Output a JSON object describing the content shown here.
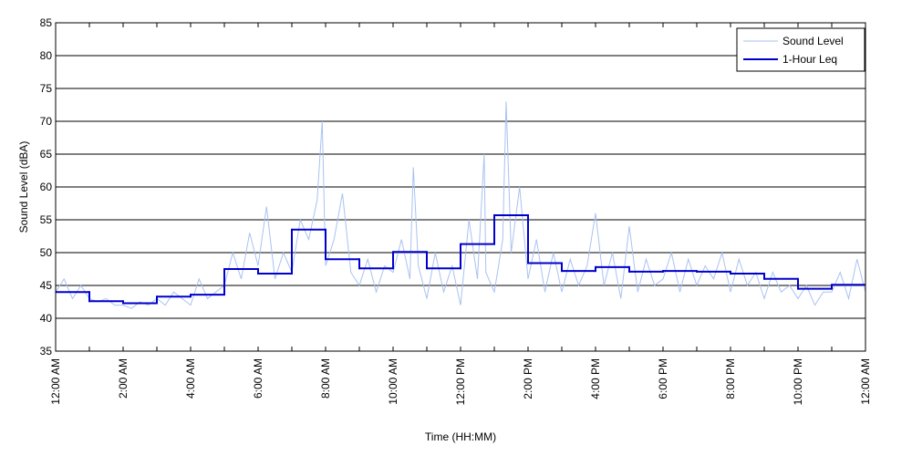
{
  "chart_data": {
    "type": "line",
    "xlabel": "Time (HH:MM)",
    "ylabel": "Sound Level (dBA)",
    "xlim": [
      0,
      24
    ],
    "ylim": [
      35,
      85
    ],
    "yticks": [
      35,
      40,
      45,
      50,
      55,
      60,
      65,
      70,
      75,
      80,
      85
    ],
    "xticks": [
      {
        "value": 0,
        "label": "12:00 AM"
      },
      {
        "value": 2,
        "label": "2:00 AM"
      },
      {
        "value": 4,
        "label": "4:00 AM"
      },
      {
        "value": 6,
        "label": "6:00 AM"
      },
      {
        "value": 8,
        "label": "8:00 AM"
      },
      {
        "value": 10,
        "label": "10:00 AM"
      },
      {
        "value": 12,
        "label": "12:00 PM"
      },
      {
        "value": 14,
        "label": "2:00 PM"
      },
      {
        "value": 16,
        "label": "4:00 PM"
      },
      {
        "value": 18,
        "label": "6:00 PM"
      },
      {
        "value": 20,
        "label": "8:00 PM"
      },
      {
        "value": 22,
        "label": "10:00 PM"
      },
      {
        "value": 24,
        "label": "12:00 AM"
      }
    ],
    "xminorticks": [
      1,
      3,
      5,
      7,
      9,
      11,
      13,
      15,
      17,
      19,
      21,
      23
    ],
    "grid": true,
    "legend": "upper right",
    "series": [
      {
        "name": "Sound Level",
        "color": "#a9c2f2",
        "x": [
          0,
          0.25,
          0.5,
          0.75,
          1,
          1.25,
          1.5,
          1.75,
          2,
          2.25,
          2.5,
          2.75,
          3,
          3.25,
          3.5,
          3.75,
          4,
          4.25,
          4.5,
          4.75,
          5,
          5.25,
          5.5,
          5.75,
          6,
          6.25,
          6.5,
          6.75,
          7,
          7.25,
          7.5,
          7.75,
          7.9,
          8,
          8.25,
          8.5,
          8.75,
          9,
          9.25,
          9.5,
          9.75,
          10,
          10.25,
          10.5,
          10.6,
          10.75,
          11,
          11.25,
          11.5,
          11.75,
          12,
          12.25,
          12.5,
          12.7,
          12.75,
          13,
          13.25,
          13.35,
          13.5,
          13.75,
          14,
          14.25,
          14.5,
          14.75,
          15,
          15.25,
          15.5,
          15.75,
          16,
          16.25,
          16.5,
          16.75,
          17,
          17.25,
          17.5,
          17.75,
          18,
          18.25,
          18.5,
          18.75,
          19,
          19.25,
          19.5,
          19.75,
          20,
          20.25,
          20.5,
          20.75,
          21,
          21.25,
          21.5,
          21.75,
          22,
          22.25,
          22.5,
          22.75,
          23,
          23.25,
          23.5,
          23.75,
          24
        ],
        "values": [
          44,
          46,
          43,
          45,
          43,
          42.5,
          43,
          42,
          42,
          41.5,
          42.5,
          42,
          43,
          42,
          44,
          43,
          42,
          46,
          43,
          44,
          45,
          50,
          46,
          53,
          48,
          57,
          46,
          50,
          47,
          55,
          52,
          58,
          70,
          48,
          52,
          59,
          47,
          45,
          49,
          44,
          48,
          47,
          52,
          46,
          63,
          48,
          43,
          50,
          44,
          48,
          42,
          55,
          46,
          65,
          47,
          44,
          52,
          73,
          50,
          60,
          46,
          52,
          44,
          50,
          44,
          49,
          45,
          48,
          56,
          45,
          50,
          43,
          54,
          44,
          49,
          45,
          46,
          50,
          44,
          49,
          45,
          48,
          46,
          50,
          44,
          49,
          45,
          47,
          43,
          47,
          44,
          45,
          43,
          45,
          42,
          44,
          44,
          47,
          43,
          49,
          44
        ]
      },
      {
        "name": "1-Hour Leq",
        "color": "#0000cc",
        "step": "post",
        "x": [
          0,
          1,
          2,
          3,
          4,
          5,
          6,
          7,
          8,
          9,
          10,
          11,
          12,
          13,
          14,
          15,
          16,
          17,
          18,
          19,
          20,
          21,
          22,
          23
        ],
        "values": [
          44,
          42.6,
          42.3,
          43.3,
          43.6,
          47.5,
          46.8,
          53.5,
          49,
          47.6,
          50.1,
          47.6,
          51.3,
          55.7,
          48.4,
          47.2,
          47.8,
          47.1,
          47.2,
          47.1,
          46.8,
          46,
          44.5,
          45.1
        ]
      }
    ]
  }
}
